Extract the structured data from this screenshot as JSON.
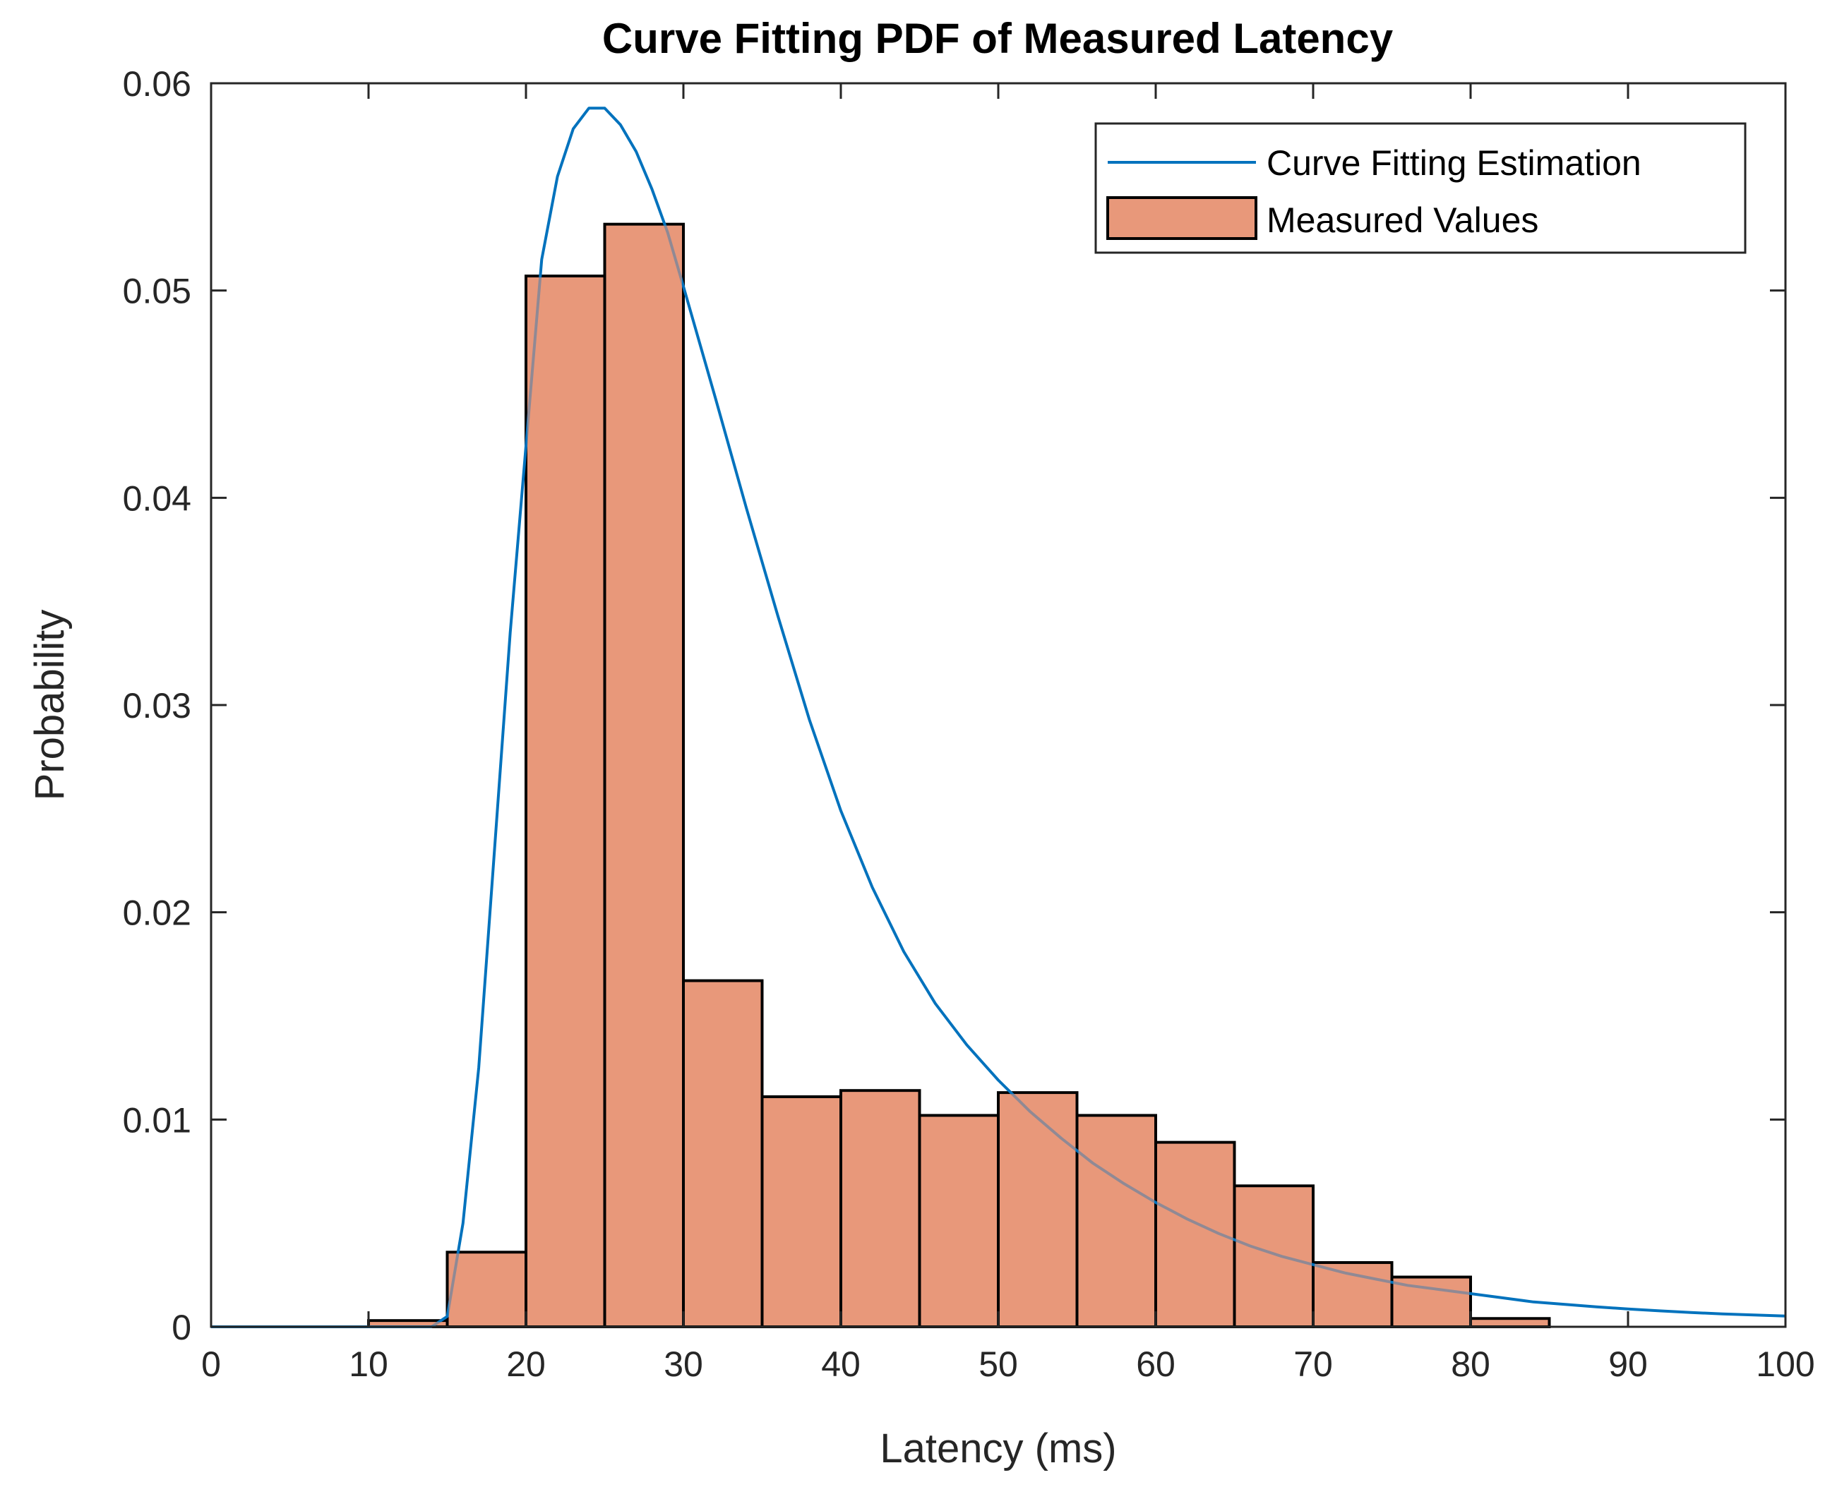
{
  "chart_data": {
    "type": "bar",
    "title": "Curve Fitting PDF of Measured Latency",
    "xlabel": "Latency (ms)",
    "ylabel": "Probability",
    "xlim": [
      0,
      100
    ],
    "ylim": [
      0,
      0.06
    ],
    "xticks": [
      0,
      10,
      20,
      30,
      40,
      50,
      60,
      70,
      80,
      90,
      100
    ],
    "xtick_labels": [
      "0",
      "10",
      "20",
      "30",
      "40",
      "50",
      "60",
      "70",
      "80",
      "90",
      "100"
    ],
    "yticks": [
      0,
      0.01,
      0.02,
      0.03,
      0.04,
      0.05,
      0.06
    ],
    "ytick_labels": [
      "0",
      "0.01",
      "0.02",
      "0.03",
      "0.04",
      "0.05",
      "0.06"
    ],
    "grid": false,
    "legend_position": "top-right",
    "histogram": {
      "name": "Measured Values",
      "color": "#E8987A",
      "edge_color": "#000000",
      "bin_edges": [
        10,
        15,
        20,
        25,
        30,
        35,
        40,
        45,
        50,
        55,
        60,
        65,
        70,
        75,
        80,
        85
      ],
      "values": [
        0.0003,
        0.0036,
        0.0507,
        0.0532,
        0.0167,
        0.0111,
        0.0114,
        0.0102,
        0.0113,
        0.0102,
        0.0089,
        0.0068,
        0.0031,
        0.0024,
        0.0004
      ]
    },
    "curve": {
      "name": "Curve Fitting Estimation",
      "color": "#0072BD",
      "x": [
        0,
        10,
        14,
        15,
        16,
        17,
        18,
        19,
        20,
        21,
        22,
        23,
        24,
        25,
        26,
        27,
        28,
        29,
        30,
        32,
        34,
        36,
        38,
        40,
        42,
        44,
        46,
        48,
        50,
        52,
        54,
        56,
        58,
        60,
        62,
        64,
        66,
        68,
        70,
        72,
        74,
        76,
        78,
        80,
        82,
        84,
        86,
        88,
        90,
        92,
        94,
        96,
        98,
        100
      ],
      "y": [
        0,
        0,
        0,
        0.0005,
        0.005,
        0.0125,
        0.023,
        0.0335,
        0.0425,
        0.0515,
        0.0555,
        0.0578,
        0.0588,
        0.0588,
        0.058,
        0.0567,
        0.0549,
        0.0528,
        0.0502,
        0.0449,
        0.0395,
        0.0343,
        0.0293,
        0.0249,
        0.0212,
        0.0181,
        0.0156,
        0.0136,
        0.0119,
        0.0104,
        0.0091,
        0.0079,
        0.0069,
        0.006,
        0.0052,
        0.0045,
        0.0039,
        0.0034,
        0.003,
        0.0026,
        0.0023,
        0.002,
        0.0018,
        0.0016,
        0.0014,
        0.0012,
        0.00108,
        0.00096,
        0.00086,
        0.00077,
        0.00069,
        0.00062,
        0.00057,
        0.00052
      ]
    }
  }
}
